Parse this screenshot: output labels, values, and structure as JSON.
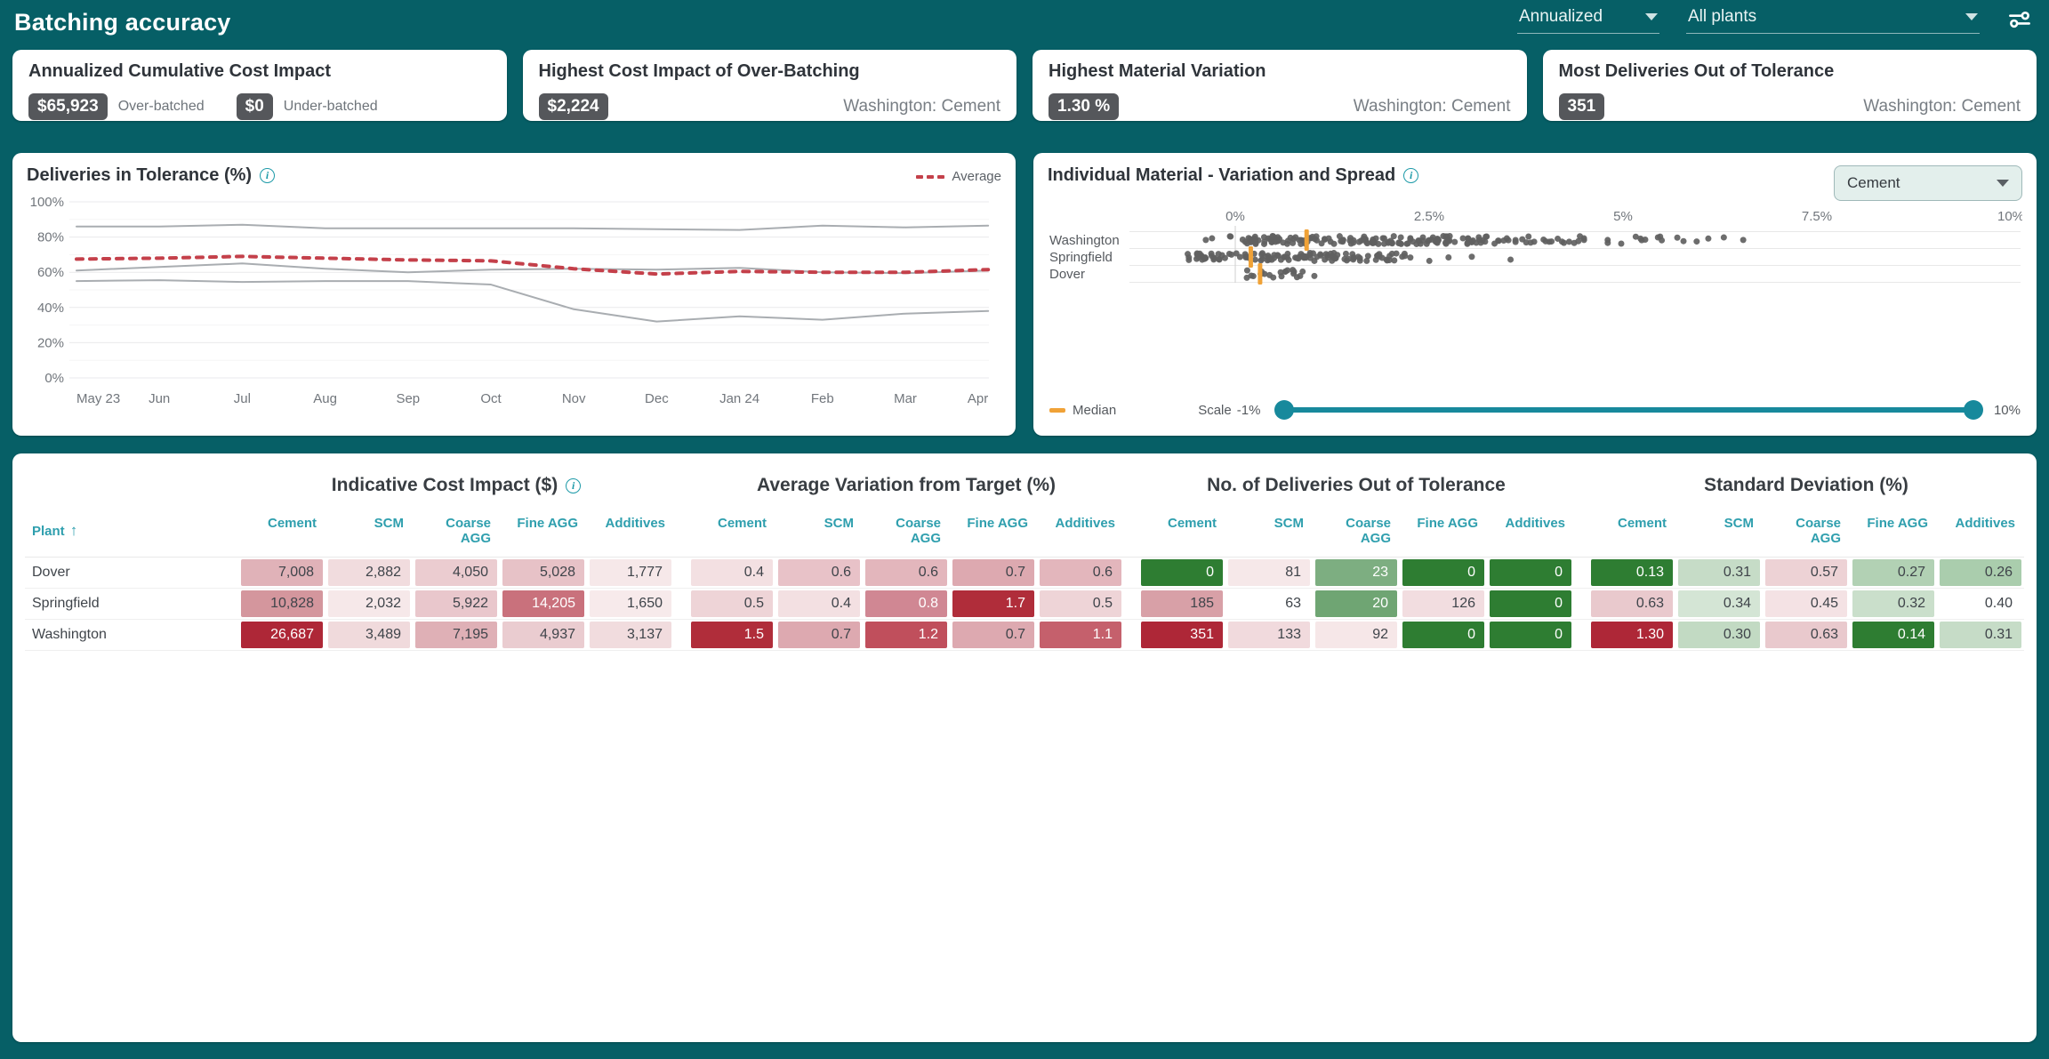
{
  "header": {
    "title": "Batching accuracy",
    "period_value": "Annualized",
    "plants_value": "All plants",
    "settings_icon": "tune-sliders-icon"
  },
  "kpi_cards": {
    "cost_impact": {
      "title": "Annualized Cumulative Cost Impact",
      "over": {
        "value": "$65,923",
        "label": "Over-batched"
      },
      "under": {
        "value": "$0",
        "label": "Under-batched"
      }
    },
    "highest_cost": {
      "title": "Highest Cost Impact of Over-Batching",
      "value": "$2,224",
      "subtitle": "Washington: Cement"
    },
    "highest_variation": {
      "title": "Highest Material Variation",
      "value": "1.30 %",
      "subtitle": "Washington: Cement"
    },
    "most_deliveries": {
      "title": "Most Deliveries Out of Tolerance",
      "value": "351",
      "subtitle": "Washington: Cement"
    }
  },
  "variation_panel": {
    "dropdown_value": "Cement",
    "median_label": "Median",
    "scale_label": "Scale",
    "scale_min": "-1%",
    "scale_max": "10%"
  },
  "chart_data": [
    {
      "type": "line",
      "title": "Deliveries in Tolerance (%)",
      "legend": [
        {
          "label": "Average",
          "color": "#c4404a",
          "style": "dashed"
        }
      ],
      "x_labels": [
        "May 23",
        "Jun",
        "Jul",
        "Aug",
        "Sep",
        "Oct",
        "Nov",
        "Dec",
        "Jan 24",
        "Feb",
        "Mar",
        "Apr"
      ],
      "ylim": [
        0,
        100
      ],
      "yticks": [
        0,
        20,
        40,
        60,
        80,
        100
      ],
      "ytick_suffix": "%",
      "grid": true,
      "legend_position": "top-right",
      "series": [
        {
          "name": "plant-line-1",
          "color": "#a9adb1",
          "dashed": false,
          "values": [
            86,
            86,
            87,
            85,
            85,
            85,
            85,
            84.5,
            84,
            86.5,
            85.5,
            86.5
          ]
        },
        {
          "name": "plant-line-2",
          "color": "#a9adb1",
          "dashed": false,
          "values": [
            61,
            63,
            65,
            62,
            60,
            61.5,
            62,
            61.5,
            62.5,
            60,
            59.5,
            61
          ]
        },
        {
          "name": "plant-line-3",
          "color": "#a9adb1",
          "dashed": false,
          "values": [
            55,
            55.5,
            54.5,
            55,
            55,
            53,
            39,
            32,
            35,
            33,
            36.5,
            38
          ]
        },
        {
          "name": "Average",
          "color": "#c4404a",
          "dashed": true,
          "values": [
            67.5,
            68,
            69,
            68,
            67,
            66.5,
            62,
            59,
            60.5,
            60,
            60,
            61.5
          ]
        }
      ]
    },
    {
      "type": "strip",
      "title": "Individual Material - Variation and Spread",
      "material": "Cement",
      "xlim": [
        -1,
        10
      ],
      "xticks": [
        {
          "v": 0,
          "label": "0%"
        },
        {
          "v": 2.5,
          "label": "2.5%"
        },
        {
          "v": 5,
          "label": "5%"
        },
        {
          "v": 7.5,
          "label": "7.5%"
        },
        {
          "v": 10,
          "label": "10%"
        }
      ],
      "dot_color": "#616161",
      "median_color": "#f0a237",
      "rows": [
        {
          "plant": "Washington",
          "median": 0.92,
          "bands": [
            [
              -0.1,
              3.3,
              150
            ],
            [
              3.3,
              4.6,
              26
            ],
            [
              4.6,
              5.5,
              10
            ]
          ],
          "outliers": [
            -0.38,
            -0.3,
            5.7,
            5.78,
            5.95,
            6.1,
            6.3,
            6.55
          ],
          "seed": 7
        },
        {
          "plant": "Springfield",
          "median": 0.2,
          "bands": [
            [
              -0.62,
              1.9,
              110
            ],
            [
              1.9,
              2.55,
              12
            ]
          ],
          "outliers": [
            2.75,
            3.05,
            3.55
          ],
          "seed": 11
        },
        {
          "plant": "Dover",
          "median": 0.32,
          "bands": [
            [
              0.08,
              0.88,
              20
            ]
          ],
          "outliers": [
            1.02
          ],
          "seed": 23
        }
      ]
    }
  ],
  "table": {
    "plant_header": "Plant",
    "sort": "asc",
    "materials": [
      "Cement",
      "SCM",
      "Coarse AGG",
      "Fine AGG",
      "Additives"
    ],
    "groups": [
      {
        "title": "Indicative Cost Impact ($)",
        "info": true
      },
      {
        "title": "Average Variation from Target (%)",
        "info": false
      },
      {
        "title": "No. of Deliveries Out of Tolerance",
        "info": false
      },
      {
        "title": "Standard Deviation (%)",
        "info": false
      }
    ],
    "rows": [
      {
        "plant": "Dover",
        "cells": [
          {
            "v": "7,008",
            "bg": "#e0b2b8"
          },
          {
            "v": "2,882",
            "bg": "#f1dcde"
          },
          {
            "v": "4,050",
            "bg": "#ebccd0"
          },
          {
            "v": "5,028",
            "bg": "#e7c2c7"
          },
          {
            "v": "1,777",
            "bg": "#f6e8e9"
          },
          {
            "v": "0.4",
            "bg": "#f3e0e2"
          },
          {
            "v": "0.6",
            "bg": "#e8c2c8"
          },
          {
            "v": "0.6",
            "bg": "#e3b6bc"
          },
          {
            "v": "0.7",
            "bg": "#dda9b0"
          },
          {
            "v": "0.6",
            "bg": "#e3b6bc"
          },
          {
            "v": "0",
            "bg": "#2e7d32",
            "fg": "w"
          },
          {
            "v": "81",
            "bg": "#f6e8e9"
          },
          {
            "v": "23",
            "bg": "#7dae81",
            "fg": "w"
          },
          {
            "v": "0",
            "bg": "#2e7d32",
            "fg": "w"
          },
          {
            "v": "0",
            "bg": "#2e7d32",
            "fg": "w"
          },
          {
            "v": "0.13",
            "bg": "#2e7d32",
            "fg": "w"
          },
          {
            "v": "0.31",
            "bg": "#c6dcc7"
          },
          {
            "v": "0.57",
            "bg": "#edd2d5"
          },
          {
            "v": "0.27",
            "bg": "#b2d1b4"
          },
          {
            "v": "0.26",
            "bg": "#aacdad"
          }
        ]
      },
      {
        "plant": "Springfield",
        "cells": [
          {
            "v": "10,828",
            "bg": "#d4969d"
          },
          {
            "v": "2,032",
            "bg": "#f6e8e9"
          },
          {
            "v": "5,922",
            "bg": "#e9c7cc"
          },
          {
            "v": "14,205",
            "bg": "#c9717c",
            "fg": "w"
          },
          {
            "v": "1,650",
            "bg": "#f7eaeb"
          },
          {
            "v": "0.5",
            "bg": "#eed4d7"
          },
          {
            "v": "0.4",
            "bg": "#f3e0e2"
          },
          {
            "v": "0.8",
            "bg": "#d08793",
            "fg": "w"
          },
          {
            "v": "1.7",
            "bg": "#b02d3a",
            "fg": "w"
          },
          {
            "v": "0.5",
            "bg": "#eed4d7"
          },
          {
            "v": "185",
            "bg": "#d8a0a7"
          },
          {
            "v": "63",
            "bg": "#ffffff"
          },
          {
            "v": "20",
            "bg": "#6fa573",
            "fg": "w"
          },
          {
            "v": "126",
            "bg": "#f2dde0"
          },
          {
            "v": "0",
            "bg": "#2e7d32",
            "fg": "w"
          },
          {
            "v": "0.63",
            "bg": "#e9c9cd"
          },
          {
            "v": "0.34",
            "bg": "#d4e5d5"
          },
          {
            "v": "0.45",
            "bg": "#f4e2e4"
          },
          {
            "v": "0.32",
            "bg": "#cadfcb"
          },
          {
            "v": "0.40",
            "bg": "#ffffff"
          }
        ]
      },
      {
        "plant": "Washington",
        "cells": [
          {
            "v": "26,687",
            "bg": "#ae2737",
            "fg": "w"
          },
          {
            "v": "3,489",
            "bg": "#f0dadc"
          },
          {
            "v": "7,195",
            "bg": "#dfb0b6"
          },
          {
            "v": "4,937",
            "bg": "#eaccd0"
          },
          {
            "v": "3,137",
            "bg": "#f1dcde"
          },
          {
            "v": "1.5",
            "bg": "#b02d3a",
            "fg": "w"
          },
          {
            "v": "0.7",
            "bg": "#dda9b0"
          },
          {
            "v": "1.2",
            "bg": "#c04f5c",
            "fg": "w"
          },
          {
            "v": "0.7",
            "bg": "#dda9b0"
          },
          {
            "v": "1.1",
            "bg": "#c5606c",
            "fg": "w"
          },
          {
            "v": "351",
            "bg": "#ae2737",
            "fg": "w"
          },
          {
            "v": "133",
            "bg": "#f1dadd"
          },
          {
            "v": "92",
            "bg": "#f6e7e8"
          },
          {
            "v": "0",
            "bg": "#2e7d32",
            "fg": "w"
          },
          {
            "v": "0",
            "bg": "#2e7d32",
            "fg": "w"
          },
          {
            "v": "1.30",
            "bg": "#ae2737",
            "fg": "w"
          },
          {
            "v": "0.30",
            "bg": "#c2dac3"
          },
          {
            "v": "0.63",
            "bg": "#e9c9cd"
          },
          {
            "v": "0.14",
            "bg": "#2e7d32",
            "fg": "w"
          },
          {
            "v": "0.31",
            "bg": "#c6dcc7"
          }
        ]
      }
    ]
  }
}
